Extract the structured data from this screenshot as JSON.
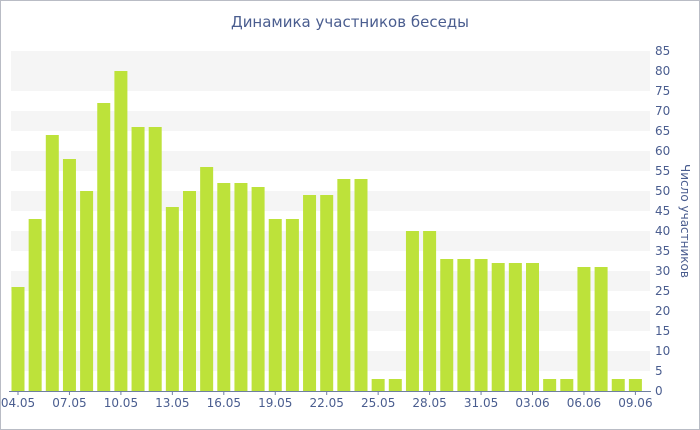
{
  "chart_data": {
    "type": "bar",
    "title": "Динамика участников беседы",
    "xlabel": "",
    "ylabel": "Число участников",
    "y_axis_side": "right",
    "ylim": [
      0,
      85
    ],
    "yticks": [
      0,
      5,
      10,
      15,
      20,
      25,
      30,
      35,
      40,
      45,
      50,
      55,
      60,
      65,
      70,
      75,
      80,
      85
    ],
    "x_tick_labels": [
      "04.05",
      "07.05",
      "10.05",
      "13.05",
      "16.05",
      "19.05",
      "22.05",
      "25.05",
      "28.05",
      "31.05",
      "03.06",
      "06.06",
      "09.06"
    ],
    "categories": [
      "04.05",
      "05.05",
      "06.05",
      "07.05",
      "08.05",
      "09.05",
      "10.05",
      "11.05",
      "12.05",
      "13.05",
      "14.05",
      "15.05",
      "16.05",
      "17.05",
      "18.05",
      "19.05",
      "20.05",
      "21.05",
      "22.05",
      "23.05",
      "24.05",
      "25.05",
      "26.05",
      "27.05",
      "28.05",
      "29.05",
      "30.05",
      "31.05",
      "01.06",
      "02.06",
      "03.06",
      "04.06",
      "05.06",
      "06.06",
      "07.06",
      "08.06",
      "09.06"
    ],
    "values": [
      26,
      43,
      64,
      58,
      50,
      72,
      80,
      66,
      66,
      46,
      50,
      56,
      52,
      52,
      51,
      43,
      43,
      49,
      49,
      53,
      53,
      3,
      3,
      40,
      40,
      33,
      33,
      33,
      32,
      32,
      32,
      3,
      3,
      31,
      31,
      3,
      3
    ],
    "bar_color": "#bde23a",
    "stripe_color": "#f5f5f5",
    "grid": "alternating horizontal bands",
    "legend": "none"
  }
}
